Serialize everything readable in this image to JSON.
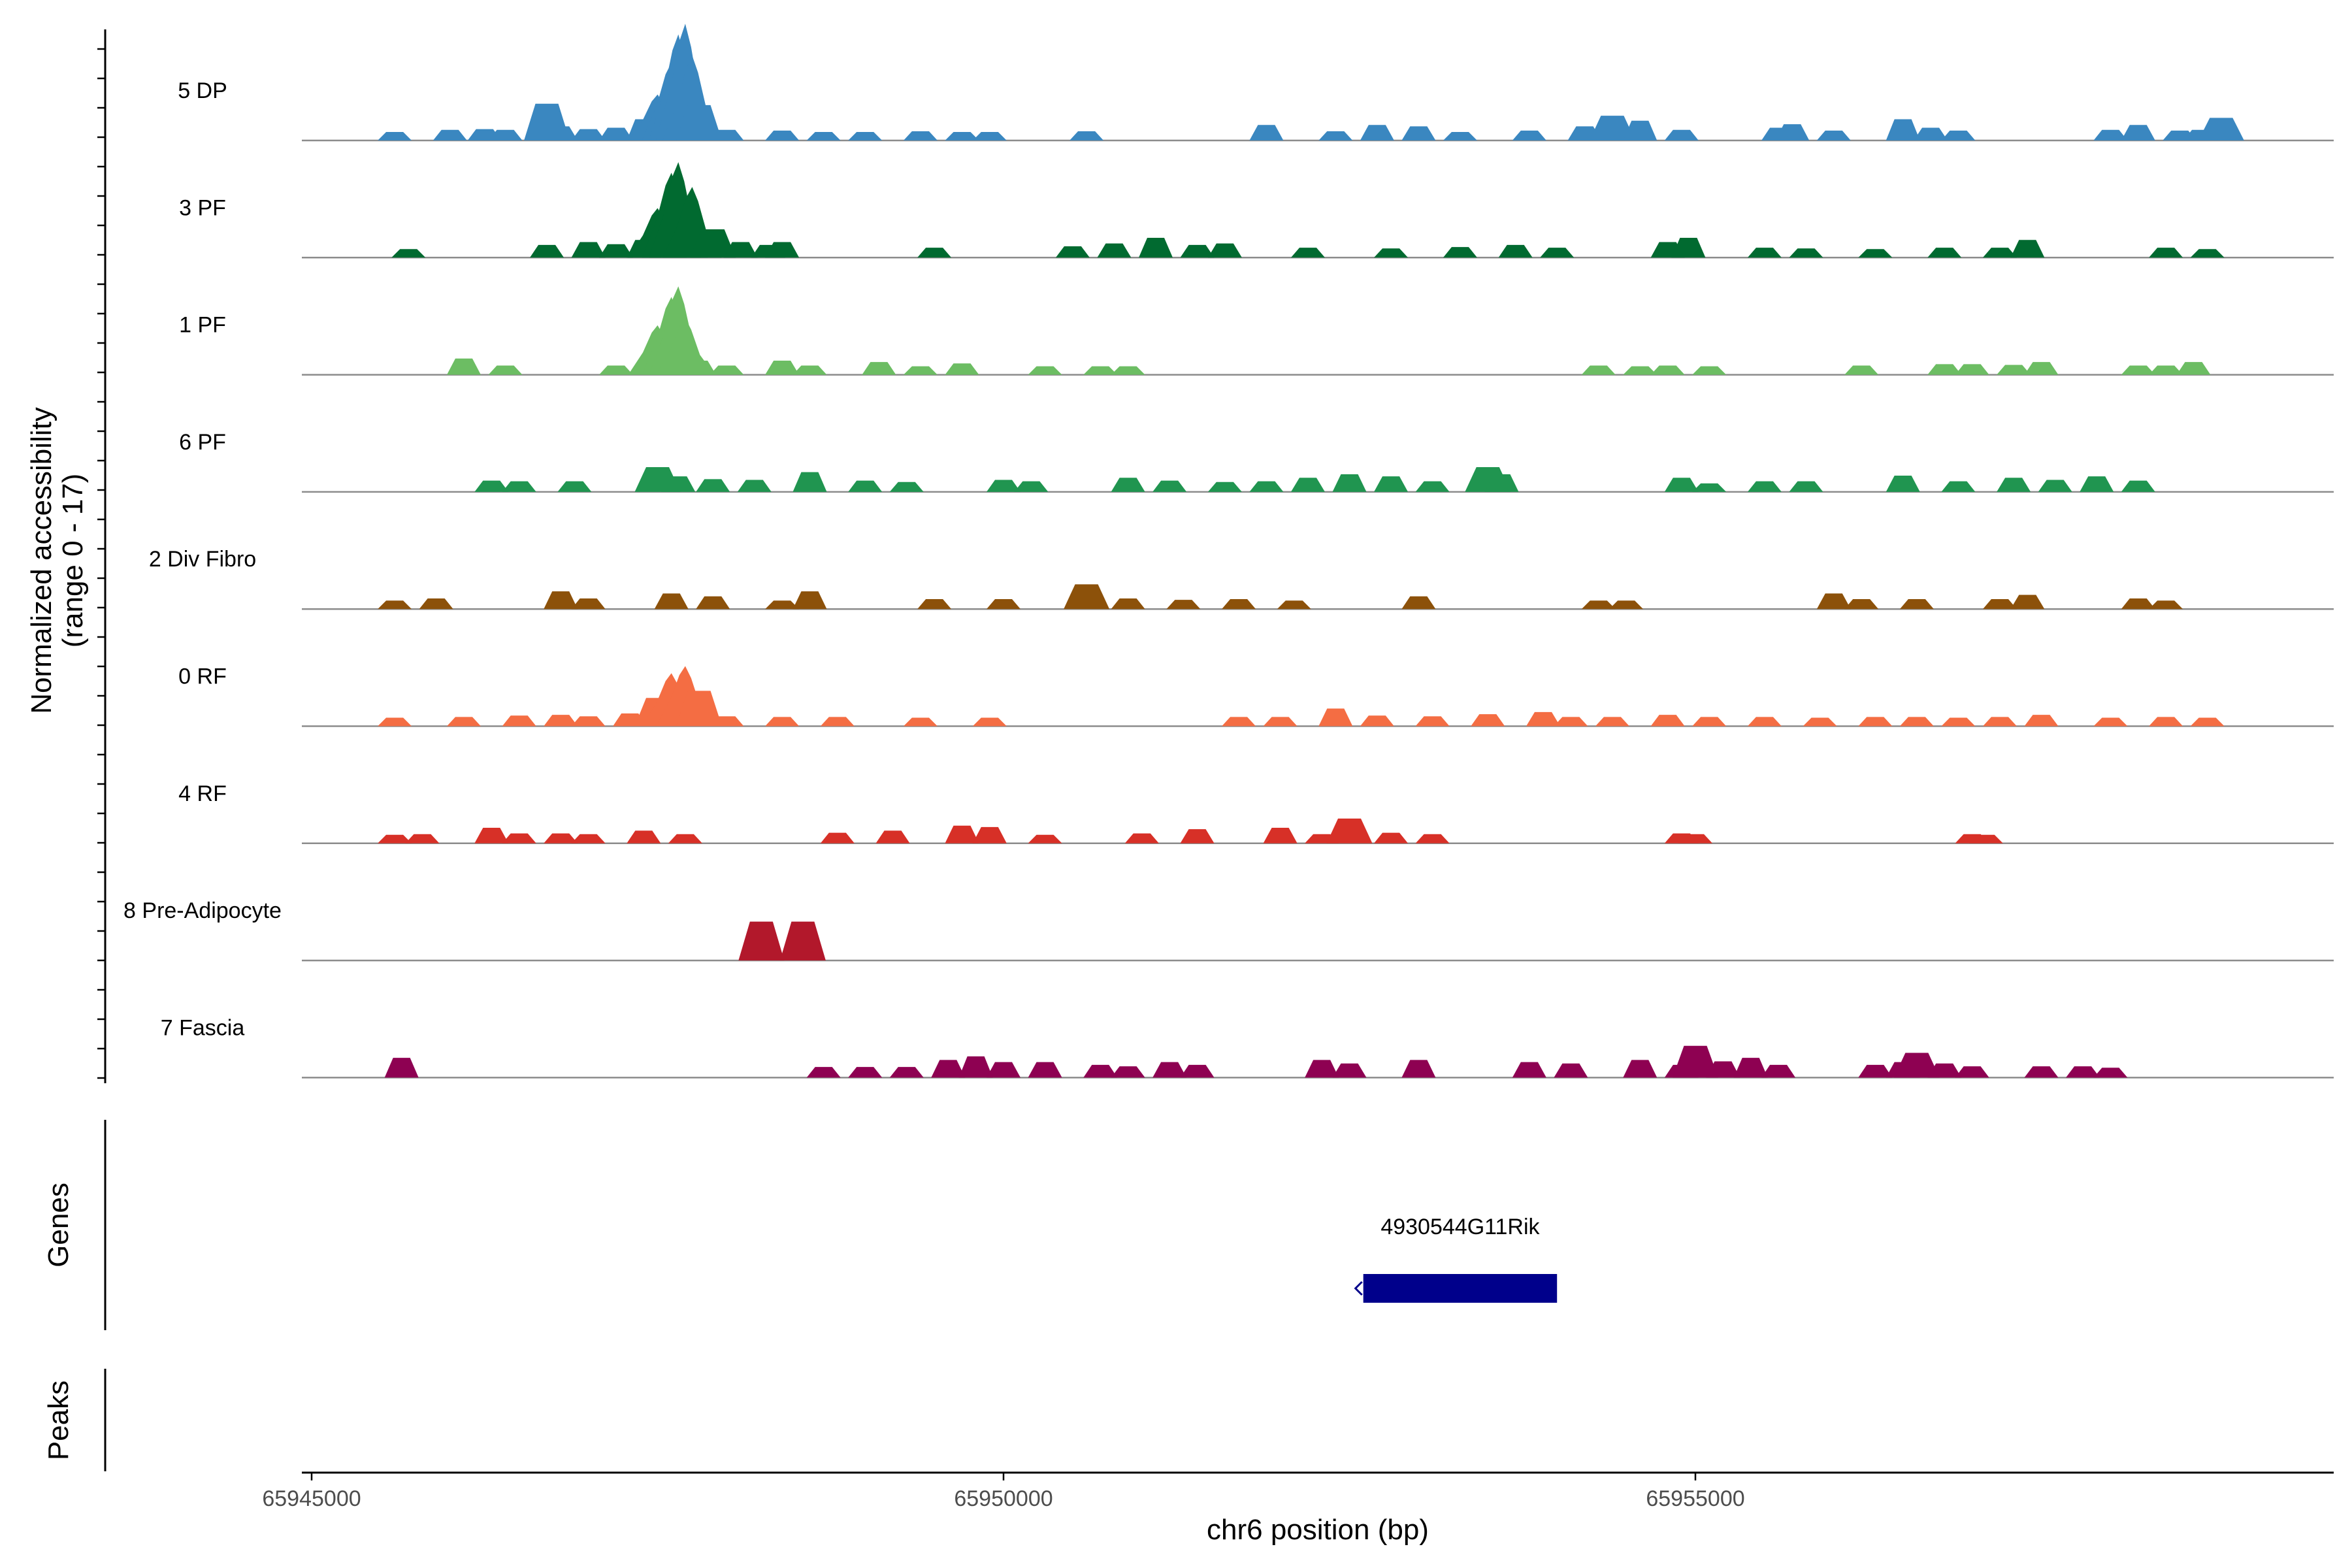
{
  "chart_data": {
    "type": "area",
    "title": "",
    "ylabel_line1": "Normalized accessibility",
    "ylabel_line2": "(range 0 - 17)",
    "xlabel": "chr6 position (bp)",
    "xlim": [
      65945000,
      65959700
    ],
    "ylim": [
      0,
      17
    ],
    "xticks": [
      65945000,
      65950000,
      65955000
    ],
    "xtick_labels": [
      "65945000",
      "65950000",
      "65955000"
    ],
    "section_labels": {
      "genes": "Genes",
      "peaks": "Peaks"
    },
    "tracks": [
      {
        "name": "5 DP",
        "color": "#3a87c0",
        "points": [
          [
            65945600,
            1.2
          ],
          [
            65946000,
            1.5
          ],
          [
            65946250,
            1.6
          ],
          [
            65946400,
            1.5
          ],
          [
            65946700,
            5.2
          ],
          [
            65946800,
            2
          ],
          [
            65947000,
            1.6
          ],
          [
            65947200,
            1.8
          ],
          [
            65947400,
            3
          ],
          [
            65947500,
            6.5
          ],
          [
            65947600,
            11
          ],
          [
            65947650,
            15
          ],
          [
            65947700,
            16.5
          ],
          [
            65947750,
            12
          ],
          [
            65947800,
            5
          ],
          [
            65948000,
            1.5
          ],
          [
            65948400,
            1.4
          ],
          [
            65948700,
            1.2
          ],
          [
            65949000,
            1.2
          ],
          [
            65949400,
            1.3
          ],
          [
            65949700,
            1.2
          ],
          [
            65949900,
            1.2
          ],
          [
            65950600,
            1.3
          ],
          [
            65951900,
            2.2
          ],
          [
            65952400,
            1.3
          ],
          [
            65952700,
            2.2
          ],
          [
            65953000,
            2
          ],
          [
            65953300,
            1.2
          ],
          [
            65953800,
            1.4
          ],
          [
            65954200,
            2
          ],
          [
            65954400,
            3.5
          ],
          [
            65954600,
            2.8
          ],
          [
            65954900,
            1.5
          ],
          [
            65955600,
            1.8
          ],
          [
            65955700,
            2.3
          ],
          [
            65956000,
            1.4
          ],
          [
            65956500,
            3
          ],
          [
            65956700,
            1.8
          ],
          [
            65956900,
            1.4
          ],
          [
            65958000,
            1.5
          ],
          [
            65958200,
            2.2
          ],
          [
            65958500,
            1.4
          ],
          [
            65958650,
            1.5
          ],
          [
            65958800,
            3.2
          ]
        ]
      },
      {
        "name": "3 PF",
        "color": "#016a30",
        "points": [
          [
            65945700,
            1.2
          ],
          [
            65946700,
            1.8
          ],
          [
            65947000,
            2.2
          ],
          [
            65947200,
            1.9
          ],
          [
            65947400,
            2.5
          ],
          [
            65947500,
            7
          ],
          [
            65947600,
            12
          ],
          [
            65947650,
            13.5
          ],
          [
            65947750,
            10
          ],
          [
            65947900,
            4
          ],
          [
            65948100,
            2.2
          ],
          [
            65948300,
            1.8
          ],
          [
            65948400,
            2.2
          ],
          [
            65949500,
            1.4
          ],
          [
            65950500,
            1.6
          ],
          [
            65950800,
            2
          ],
          [
            65951100,
            2.8
          ],
          [
            65951400,
            1.8
          ],
          [
            65951600,
            2
          ],
          [
            65952200,
            1.4
          ],
          [
            65952800,
            1.3
          ],
          [
            65953300,
            1.5
          ],
          [
            65953700,
            1.8
          ],
          [
            65954000,
            1.4
          ],
          [
            65954800,
            2.2
          ],
          [
            65954950,
            2.8
          ],
          [
            65955500,
            1.4
          ],
          [
            65955800,
            1.3
          ],
          [
            65956300,
            1.2
          ],
          [
            65956800,
            1.4
          ],
          [
            65957200,
            1.4
          ],
          [
            65957400,
            2.5
          ],
          [
            65958400,
            1.4
          ],
          [
            65958700,
            1.2
          ]
        ]
      },
      {
        "name": "1 PF",
        "color": "#6cbd63",
        "points": [
          [
            65946100,
            2.3
          ],
          [
            65946400,
            1.3
          ],
          [
            65947200,
            1.3
          ],
          [
            65947500,
            7
          ],
          [
            65947600,
            11
          ],
          [
            65947650,
            12.5
          ],
          [
            65947700,
            8
          ],
          [
            65947800,
            2
          ],
          [
            65948000,
            1.3
          ],
          [
            65948400,
            2
          ],
          [
            65948600,
            1.3
          ],
          [
            65949100,
            1.8
          ],
          [
            65949400,
            1.2
          ],
          [
            65949700,
            1.6
          ],
          [
            65950300,
            1.2
          ],
          [
            65950700,
            1.2
          ],
          [
            65950900,
            1.2
          ],
          [
            65954300,
            1.3
          ],
          [
            65954600,
            1.2
          ],
          [
            65954800,
            1.3
          ],
          [
            65955100,
            1.2
          ],
          [
            65956200,
            1.3
          ],
          [
            65956800,
            1.5
          ],
          [
            65957000,
            1.5
          ],
          [
            65957300,
            1.4
          ],
          [
            65957500,
            1.8
          ],
          [
            65958200,
            1.3
          ],
          [
            65958400,
            1.3
          ],
          [
            65958600,
            1.8
          ]
        ]
      },
      {
        "name": "6 PF",
        "color": "#209550",
        "points": [
          [
            65946300,
            1.6
          ],
          [
            65946500,
            1.5
          ],
          [
            65946900,
            1.5
          ],
          [
            65947500,
            3.5
          ],
          [
            65947650,
            2.2
          ],
          [
            65947900,
            1.8
          ],
          [
            65948200,
            1.7
          ],
          [
            65948600,
            2.8
          ],
          [
            65949000,
            1.6
          ],
          [
            65949300,
            1.4
          ],
          [
            65950000,
            1.7
          ],
          [
            65950200,
            1.5
          ],
          [
            65950900,
            2
          ],
          [
            65951200,
            1.6
          ],
          [
            65951600,
            1.4
          ],
          [
            65951900,
            1.5
          ],
          [
            65952200,
            2
          ],
          [
            65952500,
            2.5
          ],
          [
            65952800,
            2.2
          ],
          [
            65953100,
            1.5
          ],
          [
            65953500,
            3.5
          ],
          [
            65953600,
            2.5
          ],
          [
            65954900,
            2
          ],
          [
            65955100,
            1.2
          ],
          [
            65955500,
            1.5
          ],
          [
            65955800,
            1.5
          ],
          [
            65956500,
            2.3
          ],
          [
            65956900,
            1.5
          ],
          [
            65957300,
            2
          ],
          [
            65957600,
            1.7
          ],
          [
            65957900,
            2.2
          ],
          [
            65958200,
            1.6
          ]
        ]
      },
      {
        "name": "2 Div Fibro",
        "color": "#8c510a",
        "points": [
          [
            65945600,
            1.2
          ],
          [
            65945900,
            1.5
          ],
          [
            65946800,
            2.5
          ],
          [
            65947000,
            1.5
          ],
          [
            65947600,
            2.2
          ],
          [
            65947900,
            1.8
          ],
          [
            65948400,
            1.2
          ],
          [
            65948600,
            2.5
          ],
          [
            65949500,
            1.4
          ],
          [
            65950000,
            1.4
          ],
          [
            65950600,
            3.5
          ],
          [
            65950900,
            1.5
          ],
          [
            65951300,
            1.3
          ],
          [
            65951700,
            1.4
          ],
          [
            65952100,
            1.2
          ],
          [
            65953000,
            1.8
          ],
          [
            65954300,
            1.2
          ],
          [
            65954500,
            1.2
          ],
          [
            65956000,
            2.2
          ],
          [
            65956200,
            1.4
          ],
          [
            65956600,
            1.4
          ],
          [
            65957200,
            1.4
          ],
          [
            65957400,
            2
          ],
          [
            65958200,
            1.5
          ],
          [
            65958400,
            1.2
          ]
        ]
      },
      {
        "name": "0 RF",
        "color": "#f46d43",
        "points": [
          [
            65945600,
            1.2
          ],
          [
            65946100,
            1.3
          ],
          [
            65946500,
            1.5
          ],
          [
            65946800,
            1.6
          ],
          [
            65947000,
            1.4
          ],
          [
            65947300,
            1.8
          ],
          [
            65947500,
            4
          ],
          [
            65947600,
            7.5
          ],
          [
            65947700,
            8.5
          ],
          [
            65947800,
            5
          ],
          [
            65948000,
            1.4
          ],
          [
            65948400,
            1.3
          ],
          [
            65948800,
            1.3
          ],
          [
            65949400,
            1.2
          ],
          [
            65949900,
            1.2
          ],
          [
            65951700,
            1.3
          ],
          [
            65952000,
            1.3
          ],
          [
            65952400,
            2.5
          ],
          [
            65952700,
            1.5
          ],
          [
            65953100,
            1.4
          ],
          [
            65953500,
            1.7
          ],
          [
            65953900,
            2
          ],
          [
            65954100,
            1.3
          ],
          [
            65954400,
            1.3
          ],
          [
            65954800,
            1.6
          ],
          [
            65955100,
            1.3
          ],
          [
            65955500,
            1.3
          ],
          [
            65955900,
            1.2
          ],
          [
            65956300,
            1.3
          ],
          [
            65956600,
            1.3
          ],
          [
            65956900,
            1.2
          ],
          [
            65957200,
            1.3
          ],
          [
            65957500,
            1.6
          ],
          [
            65958000,
            1.2
          ],
          [
            65958400,
            1.3
          ],
          [
            65958700,
            1.2
          ]
        ]
      },
      {
        "name": "4 RF",
        "color": "#d73027",
        "points": [
          [
            65945600,
            1.2
          ],
          [
            65945800,
            1.3
          ],
          [
            65946300,
            2.2
          ],
          [
            65946500,
            1.4
          ],
          [
            65946800,
            1.4
          ],
          [
            65947000,
            1.3
          ],
          [
            65947400,
            1.8
          ],
          [
            65947700,
            1.3
          ],
          [
            65948800,
            1.5
          ],
          [
            65949200,
            1.8
          ],
          [
            65949700,
            2.5
          ],
          [
            65949900,
            2.3
          ],
          [
            65950300,
            1.2
          ],
          [
            65951000,
            1.4
          ],
          [
            65951400,
            2
          ],
          [
            65952000,
            2.2
          ],
          [
            65952300,
            1.3
          ],
          [
            65952500,
            3.5
          ],
          [
            65952800,
            1.5
          ],
          [
            65953100,
            1.3
          ],
          [
            65954900,
            1.4
          ],
          [
            65955000,
            1.3
          ],
          [
            65957000,
            1.3
          ],
          [
            65957100,
            1.2
          ]
        ]
      },
      {
        "name": "8 Pre-Adipocyte",
        "color": "#b2182b",
        "points": [
          [
            65948250,
            5.5
          ],
          [
            65948550,
            5.5
          ]
        ]
      },
      {
        "name": "7 Fascia",
        "color": "#8e0152",
        "points": [
          [
            65945650,
            2.8
          ],
          [
            65948700,
            1.5
          ],
          [
            65949000,
            1.5
          ],
          [
            65949300,
            1.5
          ],
          [
            65949600,
            2.5
          ],
          [
            65949800,
            3
          ],
          [
            65950000,
            2.2
          ],
          [
            65950300,
            2.2
          ],
          [
            65950700,
            1.8
          ],
          [
            65950900,
            1.6
          ],
          [
            65951200,
            2.2
          ],
          [
            65951400,
            1.8
          ],
          [
            65952300,
            2.5
          ],
          [
            65952500,
            2
          ],
          [
            65953000,
            2.5
          ],
          [
            65953800,
            2.2
          ],
          [
            65954100,
            2
          ],
          [
            65954600,
            2.5
          ],
          [
            65954900,
            1.8
          ],
          [
            65955000,
            4.5
          ],
          [
            65955200,
            2.3
          ],
          [
            65955400,
            2.8
          ],
          [
            65955600,
            1.8
          ],
          [
            65956300,
            1.8
          ],
          [
            65956500,
            2.2
          ],
          [
            65956600,
            3.5
          ],
          [
            65956800,
            2
          ],
          [
            65957000,
            1.6
          ],
          [
            65957500,
            1.6
          ],
          [
            65957800,
            1.6
          ],
          [
            65958000,
            1.4
          ]
        ]
      }
    ],
    "genes": [
      {
        "name": "4930544G11Rik",
        "start": 65952600,
        "end": 65954000,
        "strand": "-",
        "color": "#00008b"
      }
    ]
  }
}
